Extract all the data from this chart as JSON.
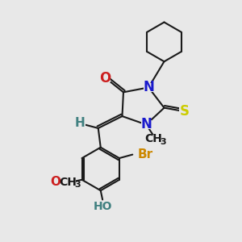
{
  "background_color": "#e8e8e8",
  "bond_color": "#1a1a1a",
  "bond_width": 1.5,
  "atom_colors": {
    "N": "#1a1acc",
    "O": "#cc2020",
    "S": "#cccc00",
    "Br": "#cc8800",
    "H_label": "#408080"
  },
  "font_size_atom": 11,
  "fig_bg": "#e8e8e8",
  "xlim": [
    0,
    10
  ],
  "ylim": [
    0,
    10
  ]
}
